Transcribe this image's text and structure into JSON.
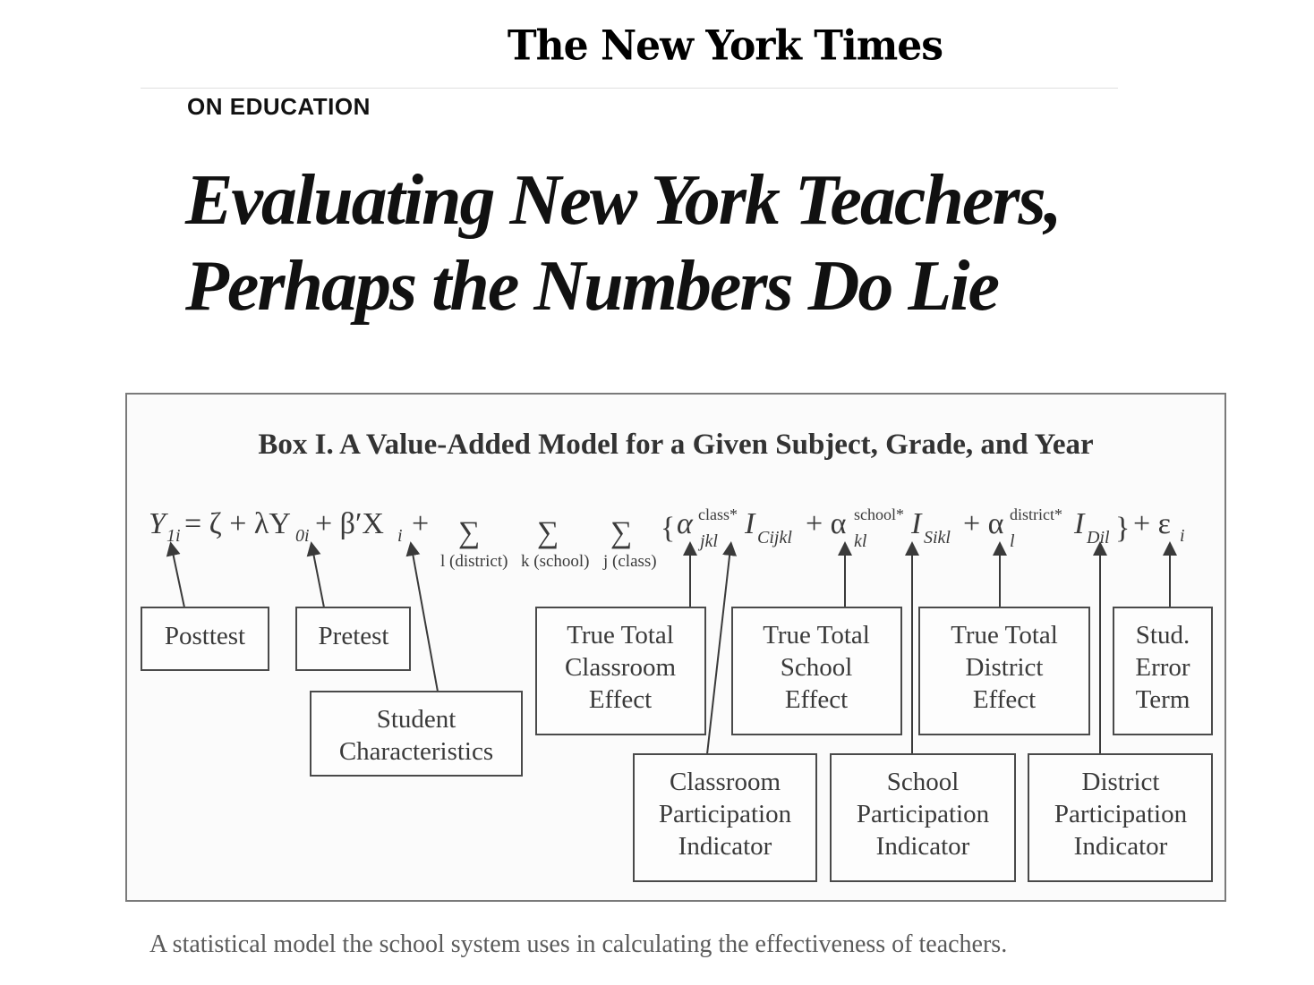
{
  "masthead": "The New York Times",
  "section_label": "ON EDUCATION",
  "headline": {
    "line1": "Evaluating New York Teachers,",
    "line2": "Perhaps the Numbers Do Lie"
  },
  "figure": {
    "title": "Box I.  A Value-Added Model for a Given Subject, Grade, and Year",
    "sums": [
      "l (district)",
      "k (school)",
      "j (class)"
    ],
    "labels": {
      "posttest": [
        "Posttest"
      ],
      "pretest": [
        "Pretest"
      ],
      "student_characteristics": [
        "Student",
        "Characteristics"
      ],
      "classroom_effect": [
        "True Total",
        "Classroom",
        "Effect"
      ],
      "school_effect": [
        "True Total",
        "School",
        "Effect"
      ],
      "district_effect": [
        "True Total",
        "District",
        "Effect"
      ],
      "error_term": [
        "Stud.",
        "Error",
        "Term"
      ],
      "classroom_indicator": [
        "Classroom",
        "Participation",
        "Indicator"
      ],
      "school_indicator": [
        "School",
        "Participation",
        "Indicator"
      ],
      "district_indicator": [
        "District",
        "Participation",
        "Indicator"
      ]
    }
  },
  "caption": "A statistical model the school system uses in calculating the effectiveness of teachers."
}
